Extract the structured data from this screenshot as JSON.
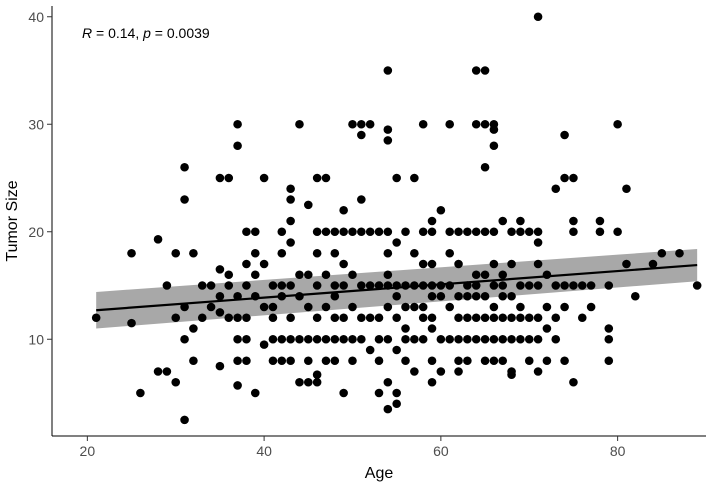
{
  "chart_data": {
    "type": "scatter",
    "xlabel": "Age",
    "ylabel": "Tumor Size",
    "xlim": [
      16,
      90
    ],
    "ylim": [
      1,
      41
    ],
    "x_ticks": [
      20,
      40,
      60,
      80
    ],
    "y_ticks": [
      10,
      20,
      30,
      40
    ],
    "grid": false,
    "annotation": {
      "r_symbol": "R",
      "r_text": " = 0.14, ",
      "p_symbol": "p",
      "p_text": " = 0.0039"
    },
    "regression": {
      "x_start": 21,
      "x_end": 89,
      "y_start": 12.7,
      "y_end": 16.9,
      "band_lower_start": 11.0,
      "band_upper_start": 14.4,
      "band_lower_end": 15.4,
      "band_upper_end": 18.4
    },
    "points": [
      [
        21,
        12
      ],
      [
        25,
        18
      ],
      [
        25,
        11.5
      ],
      [
        26,
        5
      ],
      [
        28,
        19.3
      ],
      [
        28,
        7
      ],
      [
        29,
        7
      ],
      [
        29,
        15
      ],
      [
        30,
        18
      ],
      [
        30,
        6
      ],
      [
        30,
        12
      ],
      [
        31,
        26
      ],
      [
        31,
        23
      ],
      [
        31,
        13
      ],
      [
        31,
        10
      ],
      [
        31,
        2.5
      ],
      [
        32,
        18
      ],
      [
        32,
        11
      ],
      [
        32,
        8
      ],
      [
        33,
        15
      ],
      [
        33,
        12
      ],
      [
        34,
        13
      ],
      [
        34,
        15
      ],
      [
        35,
        16.5
      ],
      [
        35,
        14
      ],
      [
        35,
        12.5
      ],
      [
        35,
        25
      ],
      [
        35,
        7.5
      ],
      [
        36,
        25
      ],
      [
        36,
        15
      ],
      [
        36,
        12
      ],
      [
        36,
        16
      ],
      [
        37,
        30
      ],
      [
        37,
        28
      ],
      [
        37,
        14
      ],
      [
        37,
        12
      ],
      [
        37,
        10
      ],
      [
        37,
        8
      ],
      [
        37,
        5.7
      ],
      [
        38,
        20
      ],
      [
        38,
        17
      ],
      [
        38,
        15
      ],
      [
        38,
        12
      ],
      [
        38,
        10
      ],
      [
        38,
        8
      ],
      [
        39,
        20
      ],
      [
        39,
        18
      ],
      [
        39,
        16
      ],
      [
        39,
        14
      ],
      [
        39,
        5
      ],
      [
        40,
        25
      ],
      [
        40,
        17
      ],
      [
        40,
        13
      ],
      [
        40,
        9.5
      ],
      [
        41,
        15
      ],
      [
        41,
        13
      ],
      [
        41,
        12
      ],
      [
        41,
        10
      ],
      [
        41,
        8
      ],
      [
        42,
        20
      ],
      [
        42,
        18
      ],
      [
        42,
        15
      ],
      [
        42,
        14
      ],
      [
        42,
        10
      ],
      [
        42,
        8
      ],
      [
        43,
        24
      ],
      [
        43,
        23
      ],
      [
        43,
        21
      ],
      [
        43,
        19
      ],
      [
        43,
        15
      ],
      [
        43,
        12
      ],
      [
        43,
        10
      ],
      [
        43,
        8
      ],
      [
        44,
        30
      ],
      [
        44,
        16
      ],
      [
        44,
        14
      ],
      [
        44,
        10
      ],
      [
        44,
        6
      ],
      [
        45,
        22.5
      ],
      [
        45,
        16
      ],
      [
        45,
        13
      ],
      [
        45,
        10
      ],
      [
        45,
        8
      ],
      [
        45,
        6
      ],
      [
        46,
        25
      ],
      [
        46,
        20
      ],
      [
        46,
        18
      ],
      [
        46,
        15
      ],
      [
        46,
        12
      ],
      [
        46,
        10
      ],
      [
        46,
        6.7
      ],
      [
        46,
        6
      ],
      [
        47,
        25
      ],
      [
        47,
        20
      ],
      [
        47,
        16
      ],
      [
        47,
        13
      ],
      [
        47,
        10
      ],
      [
        47,
        8
      ],
      [
        48,
        20
      ],
      [
        48,
        18
      ],
      [
        48,
        15
      ],
      [
        48,
        14
      ],
      [
        48,
        12
      ],
      [
        48,
        10
      ],
      [
        48,
        8
      ],
      [
        49,
        22
      ],
      [
        49,
        20
      ],
      [
        49,
        17
      ],
      [
        49,
        15
      ],
      [
        49,
        12
      ],
      [
        49,
        10
      ],
      [
        49,
        5
      ],
      [
        50,
        30
      ],
      [
        50,
        20
      ],
      [
        50,
        16
      ],
      [
        50,
        13
      ],
      [
        50,
        10
      ],
      [
        50,
        8
      ],
      [
        51,
        30
      ],
      [
        51,
        29
      ],
      [
        51,
        23
      ],
      [
        51,
        20
      ],
      [
        51,
        15
      ],
      [
        51,
        12
      ],
      [
        51,
        10
      ],
      [
        52,
        30
      ],
      [
        52,
        20
      ],
      [
        52,
        15
      ],
      [
        52,
        12
      ],
      [
        52,
        9
      ],
      [
        53,
        20
      ],
      [
        53,
        15
      ],
      [
        53,
        12
      ],
      [
        53,
        10
      ],
      [
        53,
        8
      ],
      [
        53,
        5
      ],
      [
        54,
        35
      ],
      [
        54,
        29.5
      ],
      [
        54,
        28.5
      ],
      [
        54,
        20
      ],
      [
        54,
        18
      ],
      [
        54,
        16
      ],
      [
        54,
        15
      ],
      [
        54,
        13
      ],
      [
        54,
        10
      ],
      [
        54,
        6
      ],
      [
        54,
        3.5
      ],
      [
        55,
        25
      ],
      [
        55,
        19
      ],
      [
        55,
        15
      ],
      [
        55,
        14
      ],
      [
        55,
        12
      ],
      [
        55,
        9
      ],
      [
        55,
        5
      ],
      [
        55,
        4
      ],
      [
        56,
        20
      ],
      [
        56,
        15
      ],
      [
        56,
        13
      ],
      [
        56,
        11
      ],
      [
        56,
        10
      ],
      [
        56,
        8
      ],
      [
        57,
        25
      ],
      [
        57,
        18
      ],
      [
        57,
        15
      ],
      [
        57,
        13
      ],
      [
        57,
        10
      ],
      [
        57,
        7
      ],
      [
        58,
        30
      ],
      [
        58,
        20
      ],
      [
        58,
        17
      ],
      [
        58,
        15
      ],
      [
        58,
        13
      ],
      [
        58,
        12
      ],
      [
        58,
        10
      ],
      [
        59,
        21
      ],
      [
        59,
        20
      ],
      [
        59,
        17
      ],
      [
        59,
        15
      ],
      [
        59,
        14
      ],
      [
        59,
        12
      ],
      [
        59,
        11
      ],
      [
        59,
        8
      ],
      [
        59,
        6
      ],
      [
        60,
        22
      ],
      [
        60,
        15
      ],
      [
        60,
        14
      ],
      [
        60,
        10
      ],
      [
        60,
        7
      ],
      [
        61,
        30
      ],
      [
        61,
        20
      ],
      [
        61,
        18
      ],
      [
        61,
        15
      ],
      [
        61,
        13
      ],
      [
        61,
        10
      ],
      [
        62,
        20
      ],
      [
        62,
        17
      ],
      [
        62,
        14
      ],
      [
        62,
        12
      ],
      [
        62,
        10
      ],
      [
        62,
        8
      ],
      [
        62,
        7
      ],
      [
        63,
        20
      ],
      [
        63,
        15
      ],
      [
        63,
        14
      ],
      [
        63,
        12
      ],
      [
        63,
        10
      ],
      [
        63,
        8
      ],
      [
        64,
        35
      ],
      [
        64,
        30
      ],
      [
        64,
        20
      ],
      [
        64,
        16
      ],
      [
        64,
        15
      ],
      [
        64,
        14
      ],
      [
        64,
        12
      ],
      [
        64,
        10
      ],
      [
        65,
        35
      ],
      [
        65,
        30
      ],
      [
        65,
        26
      ],
      [
        65,
        20
      ],
      [
        65,
        16
      ],
      [
        65,
        14
      ],
      [
        65,
        12
      ],
      [
        65,
        10
      ],
      [
        65,
        8
      ],
      [
        66,
        30
      ],
      [
        66,
        29.5
      ],
      [
        66,
        28
      ],
      [
        66,
        20
      ],
      [
        66,
        17
      ],
      [
        66,
        15
      ],
      [
        66,
        13
      ],
      [
        66,
        12
      ],
      [
        66,
        10
      ],
      [
        66,
        8
      ],
      [
        67,
        21
      ],
      [
        67,
        16
      ],
      [
        67,
        15
      ],
      [
        67,
        14
      ],
      [
        67,
        12
      ],
      [
        67,
        10
      ],
      [
        67,
        8
      ],
      [
        68,
        20
      ],
      [
        68,
        17
      ],
      [
        68,
        14
      ],
      [
        68,
        12
      ],
      [
        68,
        10
      ],
      [
        68,
        7
      ],
      [
        68,
        6.7
      ],
      [
        69,
        21
      ],
      [
        69,
        20
      ],
      [
        69,
        15
      ],
      [
        69,
        13
      ],
      [
        69,
        12
      ],
      [
        69,
        10
      ],
      [
        70,
        20
      ],
      [
        70,
        15
      ],
      [
        70,
        12
      ],
      [
        70,
        10
      ],
      [
        70,
        8
      ],
      [
        71,
        40
      ],
      [
        71,
        20
      ],
      [
        71,
        19
      ],
      [
        71,
        17
      ],
      [
        71,
        15
      ],
      [
        71,
        12
      ],
      [
        71,
        10
      ],
      [
        71,
        7
      ],
      [
        72,
        16
      ],
      [
        72,
        13
      ],
      [
        72,
        11
      ],
      [
        72,
        8
      ],
      [
        73,
        24
      ],
      [
        73,
        15
      ],
      [
        73,
        12
      ],
      [
        73,
        10
      ],
      [
        74,
        29
      ],
      [
        74,
        25
      ],
      [
        74,
        15
      ],
      [
        74,
        13
      ],
      [
        74,
        8
      ],
      [
        75,
        25
      ],
      [
        75,
        21
      ],
      [
        75,
        20
      ],
      [
        75,
        15
      ],
      [
        75,
        6
      ],
      [
        76,
        15
      ],
      [
        76,
        12
      ],
      [
        77,
        15
      ],
      [
        77,
        13
      ],
      [
        78,
        21
      ],
      [
        78,
        20
      ],
      [
        79,
        15
      ],
      [
        79,
        11
      ],
      [
        79,
        10
      ],
      [
        79,
        8
      ],
      [
        80,
        30
      ],
      [
        80,
        20
      ],
      [
        81,
        24
      ],
      [
        81,
        17
      ],
      [
        82,
        14
      ],
      [
        84,
        17
      ],
      [
        85,
        18
      ],
      [
        87,
        18
      ],
      [
        89,
        15
      ]
    ]
  }
}
